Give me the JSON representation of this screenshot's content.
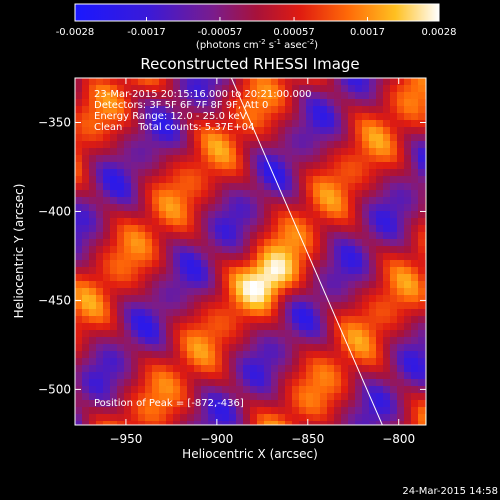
{
  "title": "Reconstructed RHESSI Image",
  "info": {
    "time_range": "23-Mar-2015 20:15:16.000 to 20:21:00.000",
    "detectors": "Detectors: 3F 5F 6F 7F 8F 9F, Att 0",
    "energy": "Energy Range: 12.0 - 25.0 keV",
    "clean": "Clean     Total counts: 5.37E+04",
    "peak": "Position of Peak = [-872,-436]"
  },
  "colorbar": {
    "ticks": [
      "-0.0028",
      "-0.0017",
      "-0.00057",
      "0.00057",
      "0.0017",
      "0.0028"
    ],
    "tick_values": [
      -0.0028,
      -0.0017,
      -0.00057,
      0.00057,
      0.0017,
      0.0028
    ],
    "range": [
      -0.0028,
      0.0028
    ],
    "label_main": "(photons cm",
    "label_sup1": "-2",
    "label_mid": " s",
    "label_sup2": "-1",
    "label_end": " asec",
    "label_sup3": "-2",
    "label_close": ")"
  },
  "footer": "24-Mar-2015 14:58",
  "chart_data": {
    "type": "heatmap",
    "title": "Reconstructed RHESSI Image",
    "xlabel": "Heliocentric X (arcsec)",
    "ylabel": "Heliocentric Y (arcsec)",
    "xlim": [
      -978,
      -785
    ],
    "ylim": [
      -520,
      -325
    ],
    "xticks": [
      -950,
      -900,
      -850,
      -800
    ],
    "yticks": [
      -350,
      -400,
      -450,
      -500
    ],
    "xtick_labels": [
      "−950",
      "−900",
      "−850",
      "−800"
    ],
    "ytick_labels": [
      "−350",
      "−400",
      "−450",
      "−500"
    ],
    "value_range": [
      -0.0028,
      0.0028
    ],
    "peak": [
      -872,
      -436
    ],
    "limb_line": [
      [
        -892,
        -325
      ],
      [
        -809,
        -520
      ]
    ],
    "colormap": "blue-purple-red-yellow-white"
  }
}
